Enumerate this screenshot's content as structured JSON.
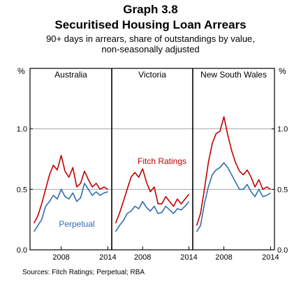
{
  "header": {
    "graph_number": "Graph 3.8",
    "title": "Securitised Housing Loan Arrears",
    "subtitle_line1": "90+ days in arrears, share of outstandings by value,",
    "subtitle_line2": "non-seasonally adjusted"
  },
  "source": "Sources: Fitch Ratings; Perpetual; RBA",
  "colors": {
    "fitch": "#c00000",
    "perpetual": "#2e6fb0",
    "axis": "#000000",
    "grid": "#aaaaaa"
  },
  "chart_data": {
    "type": "line",
    "ylabel_left": "%",
    "ylabel_right": "%",
    "ylim": [
      0,
      1.5
    ],
    "yticks": [
      {
        "value": 0.0,
        "label": "0.0"
      },
      {
        "value": 0.5,
        "label": "0.5"
      },
      {
        "value": 1.0,
        "label": "1.0"
      }
    ],
    "xlim": [
      2004,
      2014.5
    ],
    "xticks": [
      {
        "value": 2008,
        "label": "2008"
      },
      {
        "value": 2014,
        "label": "2014"
      }
    ],
    "annotations": [
      {
        "text": "Fitch Ratings",
        "panel": 1,
        "series": "fitch"
      },
      {
        "text": "Perpetual",
        "panel": 0,
        "series": "perpetual"
      }
    ],
    "panels": [
      {
        "title": "Australia",
        "series": [
          {
            "key": "fitch",
            "x": [
              2004.5,
              2005,
              2005.5,
              2006,
              2006.5,
              2007,
              2007.5,
              2008,
              2008.5,
              2009,
              2009.5,
              2010,
              2010.5,
              2011,
              2011.5,
              2012,
              2012.5,
              2013,
              2013.5,
              2014
            ],
            "values": [
              0.22,
              0.28,
              0.38,
              0.5,
              0.62,
              0.7,
              0.66,
              0.78,
              0.65,
              0.6,
              0.68,
              0.52,
              0.55,
              0.65,
              0.58,
              0.52,
              0.55,
              0.5,
              0.52,
              0.5
            ]
          },
          {
            "key": "perpetual",
            "x": [
              2004.5,
              2005,
              2005.5,
              2006,
              2006.5,
              2007,
              2007.5,
              2008,
              2008.5,
              2009,
              2009.5,
              2010,
              2010.5,
              2011,
              2011.5,
              2012,
              2012.5,
              2013,
              2013.5,
              2014
            ],
            "values": [
              0.15,
              0.2,
              0.25,
              0.36,
              0.4,
              0.45,
              0.42,
              0.5,
              0.44,
              0.42,
              0.47,
              0.4,
              0.43,
              0.55,
              0.5,
              0.45,
              0.48,
              0.45,
              0.47,
              0.48
            ]
          }
        ]
      },
      {
        "title": "Victoria",
        "series": [
          {
            "key": "fitch",
            "x": [
              2004.5,
              2005,
              2005.5,
              2006,
              2006.5,
              2007,
              2007.5,
              2008,
              2008.5,
              2009,
              2009.5,
              2010,
              2010.5,
              2011,
              2011.5,
              2012,
              2012.5,
              2013,
              2013.5,
              2014
            ],
            "values": [
              0.22,
              0.3,
              0.4,
              0.5,
              0.6,
              0.64,
              0.6,
              0.67,
              0.56,
              0.48,
              0.52,
              0.38,
              0.38,
              0.44,
              0.4,
              0.36,
              0.42,
              0.38,
              0.42,
              0.46
            ]
          },
          {
            "key": "perpetual",
            "x": [
              2004.5,
              2005,
              2005.5,
              2006,
              2006.5,
              2007,
              2007.5,
              2008,
              2008.5,
              2009,
              2009.5,
              2010,
              2010.5,
              2011,
              2011.5,
              2012,
              2012.5,
              2013,
              2013.5,
              2014
            ],
            "values": [
              0.15,
              0.2,
              0.24,
              0.3,
              0.32,
              0.36,
              0.34,
              0.4,
              0.35,
              0.32,
              0.36,
              0.3,
              0.31,
              0.36,
              0.33,
              0.3,
              0.34,
              0.33,
              0.36,
              0.4
            ]
          }
        ]
      },
      {
        "title": "New South Wales",
        "series": [
          {
            "key": "fitch",
            "x": [
              2004.5,
              2005,
              2005.5,
              2006,
              2006.5,
              2007,
              2007.5,
              2008,
              2008.5,
              2009,
              2009.5,
              2010,
              2010.5,
              2011,
              2011.5,
              2012,
              2012.5,
              2013,
              2013.5,
              2014
            ],
            "values": [
              0.2,
              0.3,
              0.5,
              0.72,
              0.88,
              0.96,
              0.98,
              1.1,
              0.95,
              0.82,
              0.72,
              0.65,
              0.62,
              0.66,
              0.6,
              0.52,
              0.58,
              0.5,
              0.52,
              0.5
            ]
          },
          {
            "key": "perpetual",
            "x": [
              2004.5,
              2005,
              2005.5,
              2006,
              2006.5,
              2007,
              2007.5,
              2008,
              2008.5,
              2009,
              2009.5,
              2010,
              2010.5,
              2011,
              2011.5,
              2012,
              2012.5,
              2013,
              2013.5,
              2014
            ],
            "values": [
              0.15,
              0.2,
              0.38,
              0.52,
              0.62,
              0.66,
              0.68,
              0.72,
              0.68,
              0.62,
              0.56,
              0.5,
              0.5,
              0.54,
              0.48,
              0.44,
              0.5,
              0.44,
              0.45,
              0.47
            ]
          }
        ]
      }
    ]
  }
}
